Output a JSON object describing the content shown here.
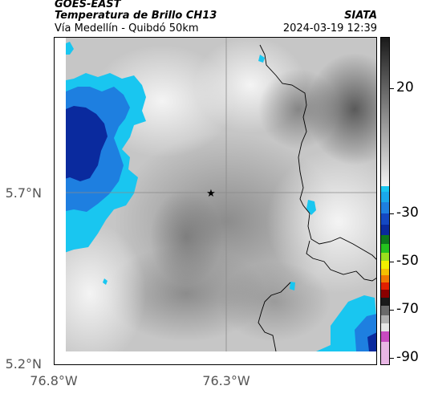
{
  "header": {
    "satellite": "GOES-EAST",
    "product": "Temperatura de Brillo CH13",
    "route": "Vía Medellín - Quibdó 50km",
    "brand": "SIATA",
    "datetime": "2024-03-19 12:39"
  },
  "axes": {
    "y_ticks": [
      "5.7°N",
      "5.2°N"
    ],
    "x_ticks": [
      "76.8°W",
      "76.3°W"
    ]
  },
  "colorbar": {
    "labels": [
      "20",
      "-30",
      "-50",
      "-70",
      "-90"
    ]
  },
  "map": {
    "marker": "star-icon",
    "colors": {
      "cold_dark": "#0a2a9e",
      "cold_mid": "#1e7fe0",
      "cold_light": "#19c6f0",
      "warm_gray": "#b8b8b8",
      "border_line": "#000000"
    }
  }
}
